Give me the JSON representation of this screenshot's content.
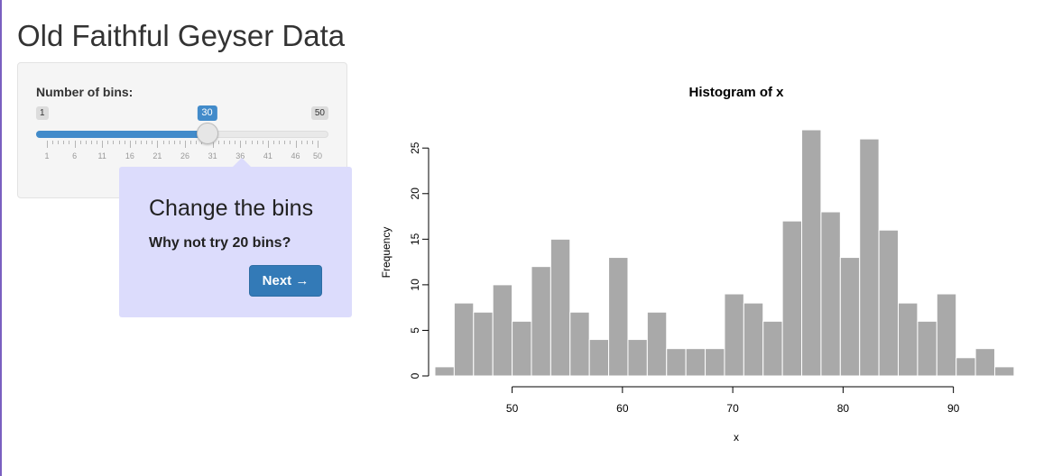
{
  "page": {
    "title": "Old Faithful Geyser Data"
  },
  "sidebar": {
    "slider": {
      "label": "Number of bins:",
      "min": 1,
      "max": 50,
      "value": 30,
      "min_label": "1",
      "max_label": "50",
      "value_label": "30",
      "tick_labels": [
        "1",
        "6",
        "11",
        "16",
        "21",
        "26",
        "31",
        "36",
        "41",
        "46",
        "50"
      ],
      "fill_color": "#428bca"
    }
  },
  "tour_popover": {
    "title": "Change the bins",
    "body": "Why not try 20 bins?",
    "next_label": "Next →",
    "background": "#dcdcfc",
    "button_color": "#337ab7"
  },
  "chart_data": {
    "type": "bar",
    "title": "Histogram of x",
    "xlabel": "x",
    "ylabel": "Frequency",
    "bin_start": 43,
    "bin_width": 1.75,
    "values": [
      1,
      8,
      7,
      10,
      6,
      12,
      15,
      7,
      4,
      13,
      4,
      7,
      3,
      3,
      3,
      9,
      8,
      6,
      17,
      27,
      18,
      13,
      26,
      16,
      8,
      6,
      9,
      2,
      3,
      1
    ],
    "x_ticks": [
      "50",
      "60",
      "70",
      "80",
      "90"
    ],
    "y_ticks": [
      "0",
      "5",
      "10",
      "15",
      "20",
      "25"
    ],
    "xlim": [
      43,
      96
    ],
    "ylim": [
      0,
      27
    ],
    "bar_color": "#a9a9a9"
  }
}
